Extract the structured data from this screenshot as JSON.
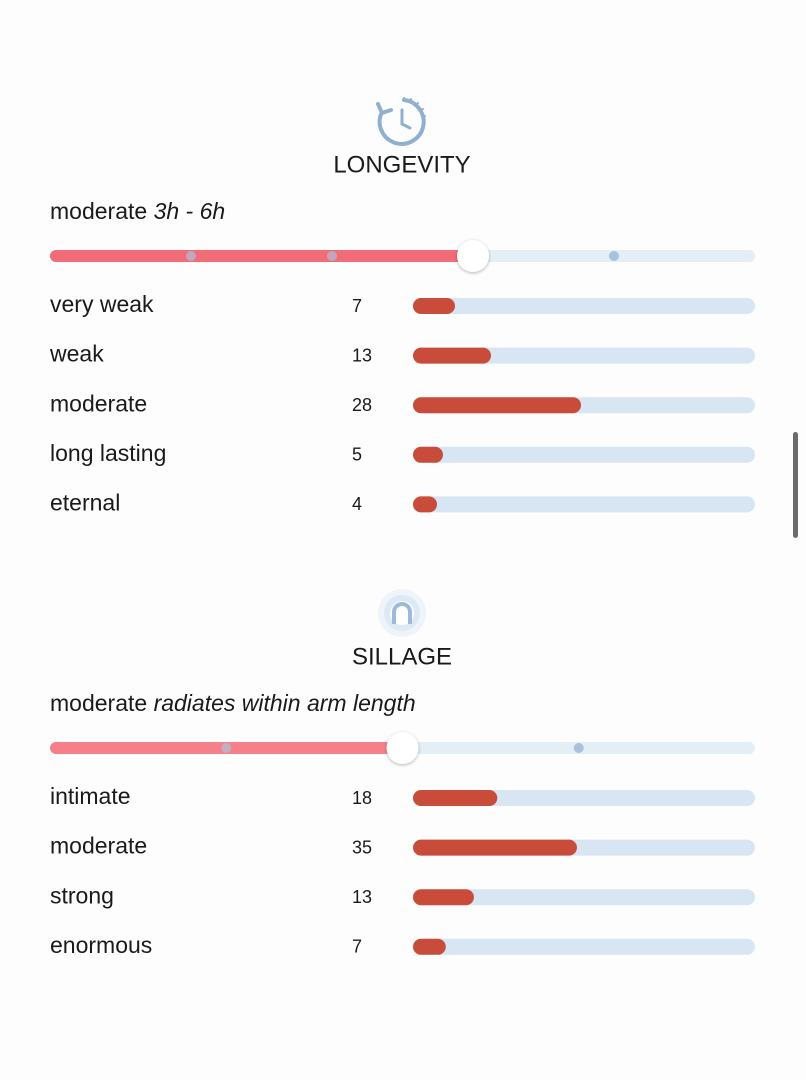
{
  "sections": [
    {
      "title": "LONGEVITY",
      "summary": {
        "level": "moderate",
        "detail": "3h - 6h"
      },
      "slider": {
        "value": 0.6,
        "stops": [
          0.2,
          0.4,
          0.8
        ]
      },
      "rows": [
        {
          "label": "very weak",
          "count": 7
        },
        {
          "label": "weak",
          "count": 13
        },
        {
          "label": "moderate",
          "count": 28
        },
        {
          "label": "long lasting",
          "count": 5
        },
        {
          "label": "eternal",
          "count": 4
        }
      ]
    },
    {
      "title": "SILLAGE",
      "summary": {
        "level": "moderate",
        "detail": "radiates within arm length"
      },
      "slider": {
        "value": 0.5,
        "stops": [
          0.25,
          0.75
        ]
      },
      "rows": [
        {
          "label": "intimate",
          "count": 18
        },
        {
          "label": "moderate",
          "count": 35
        },
        {
          "label": "strong",
          "count": 13
        },
        {
          "label": "enormous",
          "count": 7
        }
      ]
    }
  ]
}
